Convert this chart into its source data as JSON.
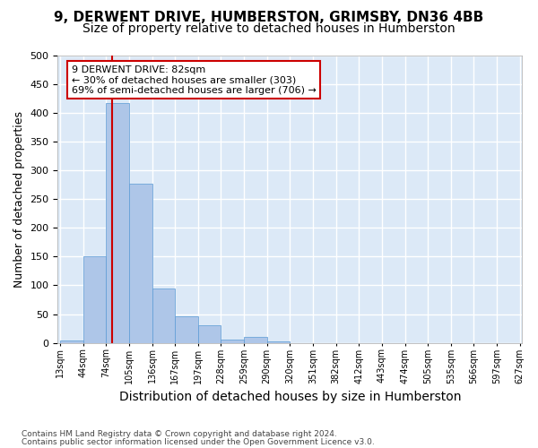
{
  "title1": "9, DERWENT DRIVE, HUMBERSTON, GRIMSBY, DN36 4BB",
  "title2": "Size of property relative to detached houses in Humberston",
  "xlabel": "Distribution of detached houses by size in Humberston",
  "ylabel": "Number of detached properties",
  "footnote1": "Contains HM Land Registry data © Crown copyright and database right 2024.",
  "footnote2": "Contains public sector information licensed under the Open Government Licence v3.0.",
  "bar_values": [
    5,
    150,
    417,
    277,
    95,
    47,
    30,
    6,
    10,
    3,
    0,
    0,
    0,
    0,
    0,
    0,
    0,
    0,
    0,
    0
  ],
  "tick_labels": [
    "13sqm",
    "44sqm",
    "74sqm",
    "105sqm",
    "136sqm",
    "167sqm",
    "197sqm",
    "228sqm",
    "259sqm",
    "290sqm",
    "320sqm",
    "351sqm",
    "382sqm",
    "412sqm",
    "443sqm",
    "474sqm",
    "505sqm",
    "535sqm",
    "566sqm",
    "597sqm",
    "627sqm"
  ],
  "bar_color": "#aec6e8",
  "bar_edgecolor": "#5b9bd5",
  "property_sqm": 82,
  "bin_74_idx": 2,
  "bin_74_val": 74,
  "bin_105_val": 105,
  "red_line_color": "#cc0000",
  "annotation_title": "9 DERWENT DRIVE: 82sqm",
  "annotation_line1": "← 30% of detached houses are smaller (303)",
  "annotation_line2": "69% of semi-detached houses are larger (706) →",
  "annotation_box_facecolor": "#ffffff",
  "annotation_box_edgecolor": "#cc0000",
  "ylim": [
    0,
    500
  ],
  "yticks": [
    0,
    50,
    100,
    150,
    200,
    250,
    300,
    350,
    400,
    450,
    500
  ],
  "background_color": "#dce9f7",
  "grid_color": "#ffffff",
  "title1_fontsize": 11,
  "title2_fontsize": 10,
  "xlabel_fontsize": 10,
  "ylabel_fontsize": 9,
  "tick_fontsize": 7,
  "annot_fontsize": 8
}
